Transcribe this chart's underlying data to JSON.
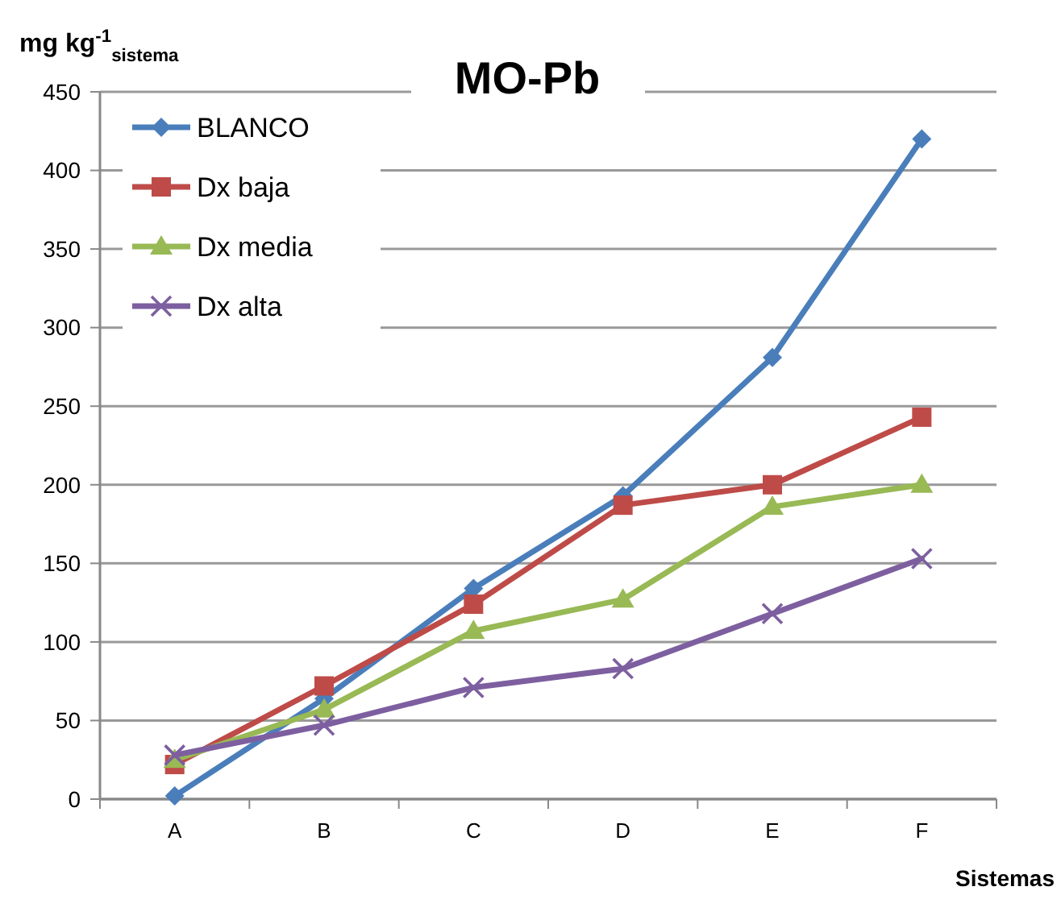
{
  "chart_data": {
    "type": "line",
    "title": "MO-Pb",
    "xlabel": "Sistemas",
    "ylabel": "mg kg$^{-1}$$_{sistema}$",
    "categories": [
      "A",
      "B",
      "C",
      "D",
      "E",
      "F"
    ],
    "ylim": [
      0,
      450
    ],
    "yticks": [
      0,
      50,
      100,
      150,
      200,
      250,
      300,
      350,
      400,
      450
    ],
    "grid": "y",
    "legend": "top left",
    "line_style": "solid",
    "series": [
      {
        "name": "BLANCO",
        "color": "#4a7ebb",
        "marker": "diamond",
        "values": [
          2,
          64,
          134,
          193,
          281,
          420
        ]
      },
      {
        "name": "Dx baja",
        "color": "#be4b48",
        "marker": "square",
        "values": [
          22,
          72,
          124,
          187,
          200,
          243
        ]
      },
      {
        "name": "Dx media",
        "color": "#98b954",
        "marker": "triangle",
        "values": [
          25,
          57,
          107,
          127,
          186,
          200
        ]
      },
      {
        "name": "Dx alta",
        "color": "#7d5fa0",
        "marker": "cross",
        "values": [
          28,
          47,
          71,
          83,
          118,
          153
        ]
      }
    ]
  }
}
